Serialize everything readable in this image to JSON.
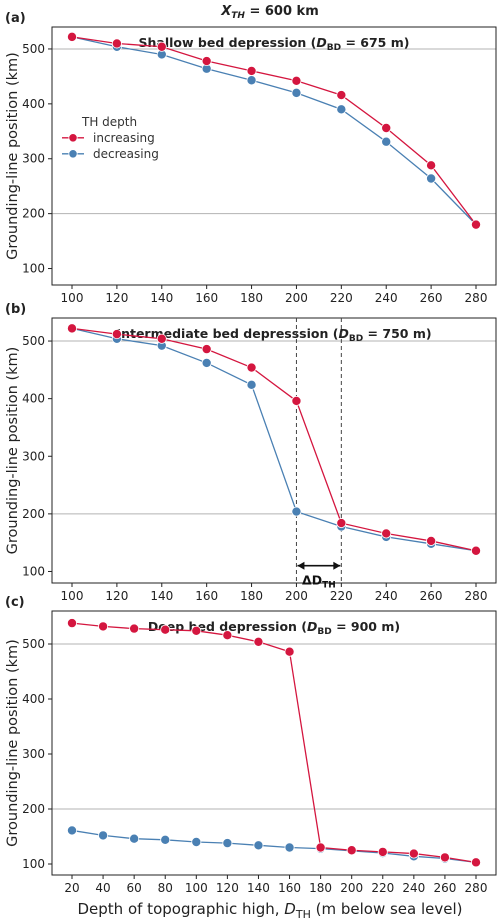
{
  "header": {
    "main": "X",
    "sub": "TH",
    "rest": " = 600 km"
  },
  "colors": {
    "increasing": "#d4163f",
    "decreasing": "#4a80b3",
    "grid": "#b3b3b3",
    "axis": "#222222"
  },
  "ylabel": "Grounding-line position (km)",
  "xlabel": {
    "main": "Depth of topographic high, ",
    "var": "D",
    "sub": "TH",
    "rest": " (m below sea level)"
  },
  "chart_data": [
    {
      "panel": "(a)",
      "type": "line",
      "title": {
        "pre": "Shallow bed depression (",
        "var": "D",
        "sub": "BD",
        "post": " = 675 m)"
      },
      "x": [
        100,
        120,
        140,
        160,
        180,
        200,
        220,
        240,
        260,
        280
      ],
      "xticks": [
        100,
        120,
        140,
        160,
        180,
        200,
        220,
        240,
        260,
        280
      ],
      "yticks": [
        100,
        200,
        300,
        400,
        500
      ],
      "gridlines_y": [
        200,
        500
      ],
      "legend": {
        "title": "TH depth",
        "placement": "center-left"
      },
      "series": [
        {
          "name": "increasing",
          "values": [
            522,
            510,
            504,
            478,
            460,
            442,
            416,
            356,
            288,
            180
          ]
        },
        {
          "name": "decreasing",
          "values": [
            522,
            504,
            490,
            464,
            443,
            420,
            390,
            331,
            264,
            180
          ]
        }
      ]
    },
    {
      "panel": "(b)",
      "type": "line",
      "title": {
        "pre": "Intermediate bed depresssion (",
        "var": "D",
        "sub": "BD",
        "post": " = 750 m)"
      },
      "x": [
        100,
        120,
        140,
        160,
        180,
        200,
        220,
        240,
        260,
        280
      ],
      "xticks": [
        100,
        120,
        140,
        160,
        180,
        200,
        220,
        240,
        260,
        280
      ],
      "yticks": [
        100,
        200,
        300,
        400,
        500
      ],
      "gridlines_y": [
        200,
        500
      ],
      "vlines_x": [
        200,
        220
      ],
      "annotation": {
        "text_main": "ΔD",
        "text_sub": "TH",
        "from": 200,
        "to": 220
      },
      "series": [
        {
          "name": "increasing",
          "values": [
            522,
            512,
            504,
            486,
            454,
            396,
            184,
            166,
            153,
            136
          ]
        },
        {
          "name": "decreasing",
          "values": [
            522,
            504,
            492,
            462,
            424,
            204,
            178,
            160,
            148,
            136
          ]
        }
      ]
    },
    {
      "panel": "(c)",
      "type": "line",
      "title": {
        "pre": "Deep bed depression (",
        "var": "D",
        "sub": "BD",
        "post": " = 900 m)"
      },
      "x": [
        20,
        40,
        60,
        80,
        100,
        120,
        140,
        160,
        180,
        200,
        220,
        240,
        260,
        280
      ],
      "xticks": [
        20,
        40,
        60,
        80,
        100,
        120,
        140,
        160,
        180,
        200,
        220,
        240,
        260,
        280
      ],
      "yticks": [
        100,
        200,
        300,
        400,
        500
      ],
      "gridlines_y": [
        200,
        500
      ],
      "series": [
        {
          "name": "increasing",
          "values": [
            538,
            532,
            528,
            526,
            524,
            516,
            504,
            486,
            130,
            125,
            122,
            119,
            112,
            103
          ]
        },
        {
          "name": "decreasing",
          "values": [
            161,
            152,
            146,
            144,
            140,
            138,
            134,
            130,
            128,
            124,
            120,
            114,
            110,
            103
          ]
        }
      ]
    }
  ]
}
